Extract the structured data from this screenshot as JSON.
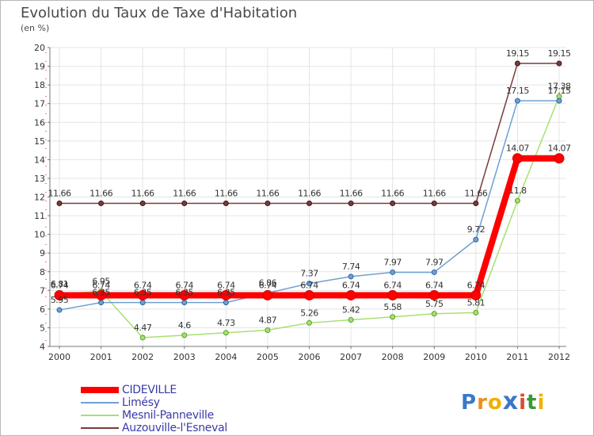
{
  "chart_data": {
    "type": "line",
    "title": "Evolution du Taux de Taxe d'Habitation",
    "unit_label": "(en %)",
    "x": [
      "2000",
      "2001",
      "2002",
      "2003",
      "2004",
      "2005",
      "2006",
      "2007",
      "2008",
      "2009",
      "2010",
      "2011",
      "2012"
    ],
    "ylim": [
      4,
      20
    ],
    "yticks": [
      "4",
      "5",
      "6",
      "7",
      "8",
      "9",
      "10",
      "11",
      "12",
      "13",
      "14",
      "15",
      "16",
      "17",
      "18",
      "19",
      "20"
    ],
    "grid": true,
    "legend_position": "bottom-left",
    "series": [
      {
        "name": "CIDEVILLE",
        "color": "#ff0000",
        "values": [
          6.74,
          6.74,
          6.74,
          6.74,
          6.74,
          6.74,
          6.74,
          6.74,
          6.74,
          6.74,
          6.74,
          14.07,
          14.07
        ],
        "labels": [
          "6.74",
          "6.74",
          "6.74",
          "6.74",
          "6.74",
          "6.74",
          "6.74",
          "6.74",
          "6.74",
          "6.74",
          "6.74",
          "14.07",
          "14.07"
        ]
      },
      {
        "name": "Limésy",
        "color": "#6fa0d0",
        "values": [
          5.95,
          6.35,
          6.35,
          6.35,
          6.35,
          6.86,
          7.37,
          7.74,
          7.97,
          7.97,
          9.72,
          17.15,
          17.15
        ],
        "labels": [
          "5.95",
          "6.35",
          "6.35",
          "6.35",
          "6.35",
          "6.86",
          "7.37",
          "7.74",
          "7.97",
          "7.97",
          "9.72",
          "17.15",
          "17.15"
        ]
      },
      {
        "name": "Mesnil-Panneville",
        "color": "#a8e070",
        "values": [
          6.81,
          6.95,
          4.47,
          4.6,
          4.73,
          4.87,
          5.26,
          5.42,
          5.58,
          5.75,
          5.81,
          11.8,
          17.38
        ],
        "labels": [
          "6.81",
          "6.95",
          "4.47",
          "4.6",
          "4.73",
          "4.87",
          "5.26",
          "5.42",
          "5.58",
          "5.75",
          "5.81",
          "11.8",
          "17.38"
        ]
      },
      {
        "name": "Auzouville-l'Esneval",
        "color": "#7a3a3a",
        "values": [
          11.66,
          11.66,
          11.66,
          11.66,
          11.66,
          11.66,
          11.66,
          11.66,
          11.66,
          11.66,
          11.66,
          19.15,
          19.15
        ],
        "labels": [
          "11.66",
          "11.66",
          "11.66",
          "11.66",
          "11.66",
          "11.66",
          "11.66",
          "11.66",
          "11.66",
          "11.66",
          "11.66",
          "19.15",
          "19.15"
        ]
      }
    ]
  },
  "logo": {
    "letters": [
      "P",
      "r",
      "o",
      "x",
      "i",
      "t",
      "i"
    ],
    "colors": [
      "#3a78c8",
      "#e89020",
      "#f0b000",
      "#3a78c8",
      "#e04830",
      "#3a9838",
      "#f0b000"
    ]
  }
}
